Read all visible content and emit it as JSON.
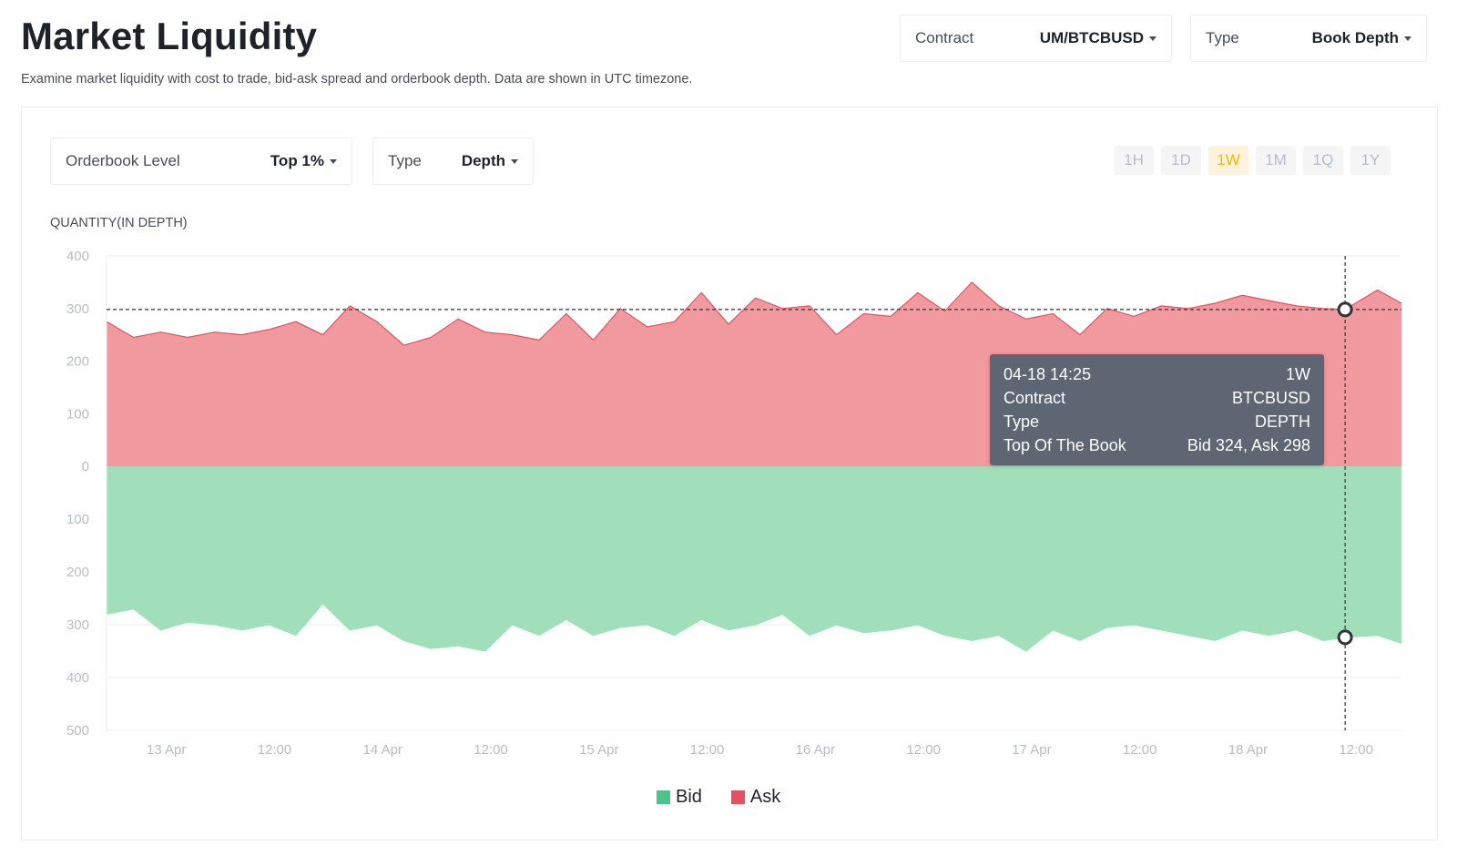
{
  "header": {
    "title": "Market Liquidity",
    "subtitle": "Examine market liquidity with cost to trade, bid-ask spread and orderbook depth. Data are shown in UTC timezone."
  },
  "filters": {
    "contract": {
      "label": "Contract",
      "value": "UM/BTCBUSD"
    },
    "type": {
      "label": "Type",
      "value": "Book Depth"
    }
  },
  "chart_controls": {
    "orderbook_level": {
      "label": "Orderbook Level",
      "value": "Top 1%"
    },
    "chart_type": {
      "label": "Type",
      "value": "Depth"
    },
    "ranges": [
      "1H",
      "1D",
      "1W",
      "1M",
      "1Q",
      "1Y"
    ],
    "active_range": "1W"
  },
  "tooltip": {
    "rows": [
      {
        "k": "04-18 14:25",
        "v": "1W"
      },
      {
        "k": "Contract",
        "v": "BTCBUSD"
      },
      {
        "k": "Type",
        "v": "DEPTH"
      },
      {
        "k": "Top Of The Book",
        "v": "Bid 324, Ask 298"
      }
    ]
  },
  "colors": {
    "bid": "#4cc38a",
    "bid_fill": "#a0dfba",
    "ask": "#e8505f",
    "ask_fill": "#f0999f",
    "active_range": "#f0b90b"
  },
  "chart_data": {
    "type": "area",
    "ylabel": "QUANTITY(IN DEPTH)",
    "y_ticks_ask": [
      0,
      100,
      200,
      300,
      400
    ],
    "y_ticks_bid": [
      100,
      200,
      300,
      400,
      500
    ],
    "ylim_ask": [
      0,
      400
    ],
    "ylim_bid": [
      0,
      500
    ],
    "x_tick_labels": [
      "13 Apr",
      "12:00",
      "14 Apr",
      "12:00",
      "15 Apr",
      "12:00",
      "16 Apr",
      "12:00",
      "17 Apr",
      "12:00",
      "18 Apr",
      "12:00"
    ],
    "x_start": "2023-04-12 21:00",
    "x_end": "2023-04-18 20:40",
    "x_ticks": [
      "2023-04-13 00:00",
      "2023-04-13 12:00",
      "2023-04-14 00:00",
      "2023-04-14 12:00",
      "2023-04-15 00:00",
      "2023-04-15 12:00",
      "2023-04-16 00:00",
      "2023-04-16 12:00",
      "2023-04-17 00:00",
      "2023-04-17 12:00",
      "2023-04-18 00:00",
      "2023-04-18 12:00"
    ],
    "crosshair": {
      "x": "2023-04-18 14:25",
      "ask": 298,
      "bid": 324
    },
    "legend": [
      "Bid",
      "Ask"
    ],
    "series": [
      {
        "name": "Ask",
        "x": [
          "2023-04-12 21:00",
          "2023-04-13 00:00",
          "2023-04-13 03:00",
          "2023-04-13 06:00",
          "2023-04-13 09:00",
          "2023-04-13 12:00",
          "2023-04-13 15:00",
          "2023-04-13 18:00",
          "2023-04-13 21:00",
          "2023-04-14 00:00",
          "2023-04-14 03:00",
          "2023-04-14 06:00",
          "2023-04-14 09:00",
          "2023-04-14 12:00",
          "2023-04-14 15:00",
          "2023-04-14 18:00",
          "2023-04-14 21:00",
          "2023-04-15 00:00",
          "2023-04-15 03:00",
          "2023-04-15 06:00",
          "2023-04-15 09:00",
          "2023-04-15 12:00",
          "2023-04-15 15:00",
          "2023-04-15 18:00",
          "2023-04-15 21:00",
          "2023-04-16 00:00",
          "2023-04-16 03:00",
          "2023-04-16 06:00",
          "2023-04-16 09:00",
          "2023-04-16 12:00",
          "2023-04-16 15:00",
          "2023-04-16 18:00",
          "2023-04-16 21:00",
          "2023-04-17 00:00",
          "2023-04-17 03:00",
          "2023-04-17 06:00",
          "2023-04-17 09:00",
          "2023-04-17 12:00",
          "2023-04-17 15:00",
          "2023-04-17 18:00",
          "2023-04-17 21:00",
          "2023-04-18 00:00",
          "2023-04-18 03:00",
          "2023-04-18 06:00",
          "2023-04-18 09:00",
          "2023-04-18 12:00",
          "2023-04-18 14:25",
          "2023-04-18 18:00",
          "2023-04-18 20:40"
        ],
        "values": [
          275,
          245,
          255,
          245,
          255,
          250,
          260,
          275,
          250,
          305,
          275,
          230,
          245,
          280,
          255,
          250,
          240,
          290,
          240,
          300,
          265,
          275,
          330,
          270,
          320,
          300,
          305,
          250,
          290,
          285,
          330,
          295,
          350,
          305,
          280,
          290,
          250,
          300,
          285,
          305,
          300,
          310,
          325,
          315,
          305,
          300,
          298,
          335,
          310
        ]
      },
      {
        "name": "Bid",
        "x": [
          "2023-04-12 21:00",
          "2023-04-13 00:00",
          "2023-04-13 03:00",
          "2023-04-13 06:00",
          "2023-04-13 09:00",
          "2023-04-13 12:00",
          "2023-04-13 15:00",
          "2023-04-13 18:00",
          "2023-04-13 21:00",
          "2023-04-14 00:00",
          "2023-04-14 03:00",
          "2023-04-14 06:00",
          "2023-04-14 09:00",
          "2023-04-14 12:00",
          "2023-04-14 15:00",
          "2023-04-14 18:00",
          "2023-04-14 21:00",
          "2023-04-15 00:00",
          "2023-04-15 03:00",
          "2023-04-15 06:00",
          "2023-04-15 09:00",
          "2023-04-15 12:00",
          "2023-04-15 15:00",
          "2023-04-15 18:00",
          "2023-04-15 21:00",
          "2023-04-16 00:00",
          "2023-04-16 03:00",
          "2023-04-16 06:00",
          "2023-04-16 09:00",
          "2023-04-16 12:00",
          "2023-04-16 15:00",
          "2023-04-16 18:00",
          "2023-04-16 21:00",
          "2023-04-17 00:00",
          "2023-04-17 03:00",
          "2023-04-17 06:00",
          "2023-04-17 09:00",
          "2023-04-17 12:00",
          "2023-04-17 15:00",
          "2023-04-17 18:00",
          "2023-04-17 21:00",
          "2023-04-18 00:00",
          "2023-04-18 03:00",
          "2023-04-18 06:00",
          "2023-04-18 09:00",
          "2023-04-18 12:00",
          "2023-04-18 14:25",
          "2023-04-18 18:00",
          "2023-04-18 20:40"
        ],
        "values": [
          280,
          270,
          310,
          295,
          300,
          310,
          300,
          320,
          260,
          310,
          300,
          330,
          345,
          340,
          350,
          300,
          320,
          290,
          320,
          305,
          300,
          320,
          290,
          310,
          300,
          280,
          320,
          300,
          315,
          310,
          300,
          320,
          330,
          320,
          350,
          310,
          330,
          305,
          300,
          310,
          320,
          330,
          310,
          320,
          310,
          330,
          324,
          320,
          335
        ]
      }
    ]
  }
}
